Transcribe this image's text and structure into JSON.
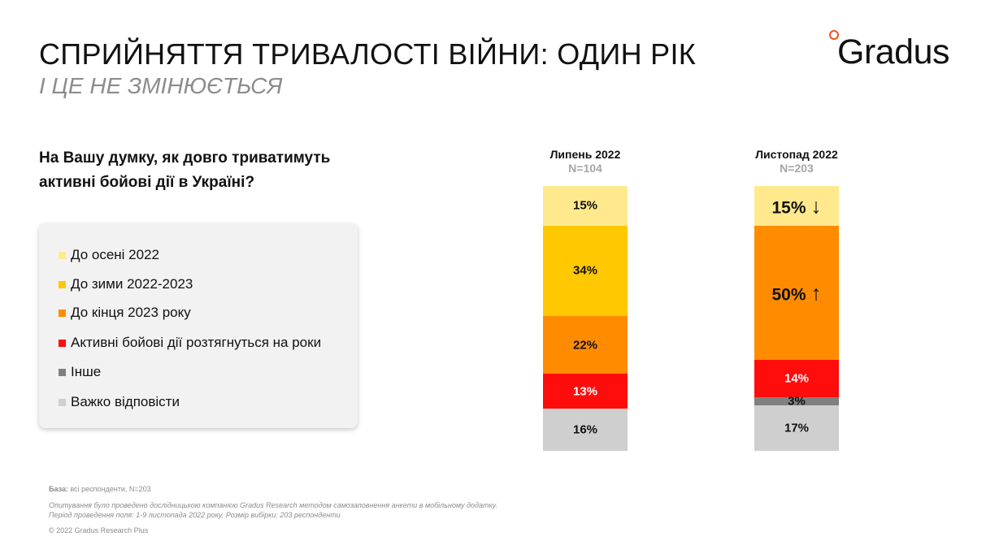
{
  "header": {
    "title": "СПРИЙНЯТТЯ ТРИВАЛОСТІ ВІЙНИ: ОДИН РІК",
    "subtitle": "І ЦЕ НЕ ЗМІНЮЄТЬСЯ"
  },
  "logo": {
    "text": "Gradus"
  },
  "question": "На Вашу думку, як довго триватимуть активні бойові дії в Україні?",
  "legend": [
    {
      "label": "До осені 2022",
      "color": "#ffe98c"
    },
    {
      "label": "До зими 2022-2023",
      "color": "#ffc800"
    },
    {
      "label": "До кінця 2023 року",
      "color": "#ff8c00"
    },
    {
      "label": "Активні бойові дії розтягнуться на роки",
      "color": "#ff0d0d"
    },
    {
      "label": "Інше",
      "color": "#808080"
    },
    {
      "label": "Важко відповісти",
      "color": "#cfcfcf"
    }
  ],
  "chart_data": {
    "type": "bar",
    "stacked": true,
    "categories": [
      "Липень 2022",
      "Листопад 2022"
    ],
    "sample_sizes": [
      "N=104",
      "N=203"
    ],
    "series": [
      {
        "name": "До осені 2022",
        "values": [
          15,
          15
        ],
        "labels": [
          "15%",
          "15%"
        ],
        "arrows": [
          "",
          "↓"
        ]
      },
      {
        "name": "До зими 2022-2023",
        "values": [
          34,
          0
        ],
        "labels": [
          "34%",
          ""
        ],
        "arrows": [
          "",
          ""
        ]
      },
      {
        "name": "До кінця 2023 року",
        "values": [
          22,
          50
        ],
        "labels": [
          "22%",
          "50%"
        ],
        "arrows": [
          "",
          "↑"
        ]
      },
      {
        "name": "Активні бойові дії розтягнуться на роки",
        "values": [
          13,
          14
        ],
        "labels": [
          "13%",
          "14%"
        ],
        "arrows": [
          "",
          ""
        ]
      },
      {
        "name": "Інше",
        "values": [
          0,
          3
        ],
        "labels": [
          "",
          "3%"
        ],
        "arrows": [
          "",
          ""
        ]
      },
      {
        "name": "Важко відповісти",
        "values": [
          16,
          17
        ],
        "labels": [
          "16%",
          "17%"
        ],
        "arrows": [
          "",
          ""
        ]
      }
    ],
    "unit": "%"
  },
  "footer": {
    "base_label": "База:",
    "base_text": " всі респонденти, N=203",
    "method_line1": "Опитування було проведено дослідницькою компанією Gradus Research методом самозаповнення анкети в мобільному додатку.",
    "method_line2": "Період проведення поля: 1-9 листопада 2022 року. Розмір вибірки: 203 респонденти",
    "copyright": "© 2022 Gradus Research Plus"
  }
}
